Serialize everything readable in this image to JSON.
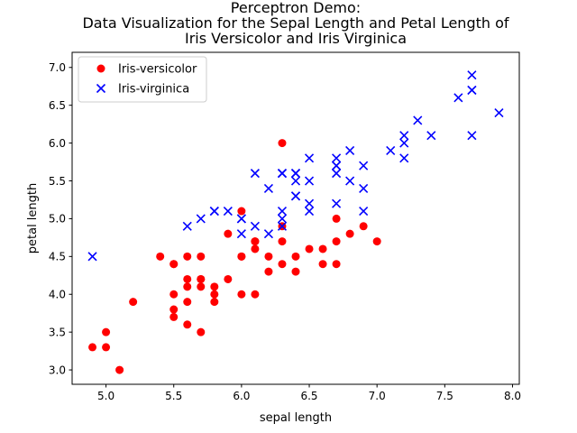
{
  "chart_data": {
    "type": "scatter",
    "title_lines": [
      "Perceptron Demo:",
      "Data Visualization for the Sepal Length and Petal Length of",
      "Iris Versicolor and Iris Virginica"
    ],
    "xlabel": "sepal length",
    "ylabel": "petal length",
    "xlim": [
      4.75,
      8.05
    ],
    "ylim": [
      2.81,
      7.2
    ],
    "xticks": [
      5.0,
      5.5,
      6.0,
      6.5,
      7.0,
      7.5,
      8.0
    ],
    "xtick_labels": [
      "5.0",
      "5.5",
      "6.0",
      "6.5",
      "7.0",
      "7.5",
      "8.0"
    ],
    "yticks": [
      3.0,
      3.5,
      4.0,
      4.5,
      5.0,
      5.5,
      6.0,
      6.5,
      7.0
    ],
    "ytick_labels": [
      "3.0",
      "3.5",
      "4.0",
      "4.5",
      "5.0",
      "5.5",
      "6.0",
      "6.5",
      "7.0"
    ],
    "grid": false,
    "legend_position": "top-left",
    "series": [
      {
        "name": "Iris-versicolor",
        "marker": "circle",
        "color": "#ff0000",
        "points": [
          [
            7.0,
            4.7
          ],
          [
            6.4,
            4.5
          ],
          [
            6.9,
            4.9
          ],
          [
            5.5,
            4.0
          ],
          [
            6.5,
            4.6
          ],
          [
            5.7,
            4.5
          ],
          [
            6.3,
            4.7
          ],
          [
            4.9,
            3.3
          ],
          [
            6.6,
            4.6
          ],
          [
            5.2,
            3.9
          ],
          [
            5.0,
            3.5
          ],
          [
            5.9,
            4.2
          ],
          [
            6.0,
            4.0
          ],
          [
            6.1,
            4.7
          ],
          [
            5.6,
            3.6
          ],
          [
            6.7,
            4.4
          ],
          [
            5.6,
            4.5
          ],
          [
            5.8,
            4.1
          ],
          [
            6.2,
            4.5
          ],
          [
            5.6,
            3.9
          ],
          [
            5.9,
            4.8
          ],
          [
            6.1,
            4.0
          ],
          [
            6.3,
            4.9
          ],
          [
            6.1,
            4.7
          ],
          [
            6.4,
            4.3
          ],
          [
            6.6,
            4.4
          ],
          [
            6.8,
            4.8
          ],
          [
            6.7,
            5.0
          ],
          [
            6.0,
            4.5
          ],
          [
            5.7,
            3.5
          ],
          [
            5.5,
            3.8
          ],
          [
            5.5,
            3.7
          ],
          [
            5.8,
            3.9
          ],
          [
            6.0,
            5.1
          ],
          [
            5.4,
            4.5
          ],
          [
            6.0,
            4.5
          ],
          [
            6.7,
            4.7
          ],
          [
            6.3,
            4.4
          ],
          [
            5.6,
            4.1
          ],
          [
            5.5,
            4.4
          ],
          [
            5.5,
            4.4
          ],
          [
            6.1,
            4.6
          ],
          [
            5.8,
            4.0
          ],
          [
            5.0,
            3.3
          ],
          [
            5.6,
            4.2
          ],
          [
            5.7,
            4.2
          ],
          [
            5.7,
            4.2
          ],
          [
            6.2,
            4.3
          ],
          [
            5.1,
            3.0
          ],
          [
            5.7,
            4.1
          ],
          [
            6.3,
            6.0
          ]
        ]
      },
      {
        "name": "Iris-virginica",
        "marker": "x",
        "color": "#0000ff",
        "points": [
          [
            5.8,
            5.1
          ],
          [
            7.1,
            5.9
          ],
          [
            6.3,
            5.6
          ],
          [
            6.5,
            5.8
          ],
          [
            7.6,
            6.6
          ],
          [
            4.9,
            4.5
          ],
          [
            7.3,
            6.3
          ],
          [
            6.7,
            5.8
          ],
          [
            7.2,
            6.1
          ],
          [
            6.5,
            5.1
          ],
          [
            6.4,
            5.3
          ],
          [
            6.8,
            5.5
          ],
          [
            5.7,
            5.0
          ],
          [
            5.8,
            5.1
          ],
          [
            6.4,
            5.3
          ],
          [
            6.5,
            5.5
          ],
          [
            7.7,
            6.7
          ],
          [
            7.7,
            6.9
          ],
          [
            6.0,
            5.0
          ],
          [
            6.9,
            5.7
          ],
          [
            5.6,
            4.9
          ],
          [
            7.7,
            6.7
          ],
          [
            6.3,
            4.9
          ],
          [
            6.7,
            5.7
          ],
          [
            7.2,
            6.0
          ],
          [
            6.2,
            4.8
          ],
          [
            6.1,
            4.9
          ],
          [
            6.4,
            5.6
          ],
          [
            7.2,
            5.8
          ],
          [
            7.4,
            6.1
          ],
          [
            7.9,
            6.4
          ],
          [
            6.4,
            5.6
          ],
          [
            6.3,
            5.1
          ],
          [
            6.1,
            5.6
          ],
          [
            7.7,
            6.1
          ],
          [
            6.3,
            5.6
          ],
          [
            6.4,
            5.5
          ],
          [
            6.0,
            4.8
          ],
          [
            6.9,
            5.4
          ],
          [
            6.7,
            5.6
          ],
          [
            6.9,
            5.1
          ],
          [
            6.8,
            5.9
          ],
          [
            6.7,
            5.7
          ],
          [
            6.7,
            5.2
          ],
          [
            6.3,
            5.0
          ],
          [
            6.5,
            5.2
          ],
          [
            6.2,
            5.4
          ],
          [
            5.9,
            5.1
          ],
          [
            6.0,
            5.0
          ]
        ]
      }
    ]
  }
}
